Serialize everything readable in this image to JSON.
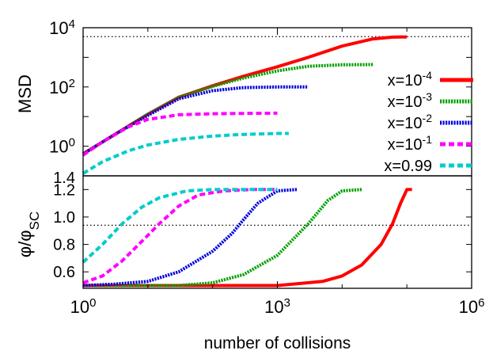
{
  "chart_data": [
    {
      "type": "line",
      "panel": "top",
      "ylabel": "MSD",
      "x_scale": "log",
      "y_scale": "log",
      "xlim": [
        1,
        1000000
      ],
      "ylim": [
        0.1,
        10000
      ],
      "y_ticks": [
        {
          "value": 1,
          "base": "10",
          "exp": "0"
        },
        {
          "value": 100,
          "base": "10",
          "exp": "2"
        },
        {
          "value": 10000,
          "base": "10",
          "exp": "4"
        }
      ],
      "reference_line": {
        "y": 5000,
        "style": "dotted"
      },
      "legend_position": "right",
      "series": [
        {
          "label_base": "x=10",
          "label_exp": "-4",
          "color": "#ff0000",
          "dash": "solid",
          "points": [
            [
              1,
              0.55
            ],
            [
              3,
              2.4
            ],
            [
              10,
              12
            ],
            [
              30,
              45
            ],
            [
              100,
              110
            ],
            [
              300,
              230
            ],
            [
              1000,
              480
            ],
            [
              3000,
              1000
            ],
            [
              10000,
              2400
            ],
            [
              30000,
              4200
            ],
            [
              60000,
              4800
            ],
            [
              100000,
              4900
            ]
          ]
        },
        {
          "label_base": "x=10",
          "label_exp": "-3",
          "color": "#00a000",
          "dash": "dotted",
          "points": [
            [
              1,
              0.55
            ],
            [
              3,
              2.4
            ],
            [
              10,
              12
            ],
            [
              30,
              45
            ],
            [
              100,
              105
            ],
            [
              300,
              200
            ],
            [
              1000,
              350
            ],
            [
              3000,
              500
            ],
            [
              10000,
              560
            ],
            [
              30000,
              570
            ]
          ]
        },
        {
          "label_base": "x=10",
          "label_exp": "-2",
          "color": "#0000dd",
          "dash": "dotted",
          "points": [
            [
              1,
              0.55
            ],
            [
              3,
              2.4
            ],
            [
              10,
              11
            ],
            [
              30,
              40
            ],
            [
              100,
              75
            ],
            [
              300,
              95
            ],
            [
              1000,
              100
            ],
            [
              3000,
              100
            ]
          ]
        },
        {
          "label_base": "x=10",
          "label_exp": "-1",
          "color": "#ff00ff",
          "dash": "dashed",
          "points": [
            [
              1,
              0.5
            ],
            [
              2,
              1.4
            ],
            [
              5,
              4.5
            ],
            [
              10,
              8
            ],
            [
              30,
              11.5
            ],
            [
              100,
              12.5
            ],
            [
              300,
              12.8
            ],
            [
              1000,
              13
            ]
          ]
        },
        {
          "label": "x=0.99",
          "color": "#00cccc",
          "dash": "dashed",
          "points": [
            [
              1,
              0.12
            ],
            [
              2,
              0.3
            ],
            [
              5,
              0.7
            ],
            [
              10,
              1.1
            ],
            [
              30,
              1.7
            ],
            [
              100,
              2.2
            ],
            [
              300,
              2.5
            ],
            [
              1000,
              2.7
            ],
            [
              1500,
              2.7
            ]
          ]
        }
      ]
    },
    {
      "type": "line",
      "panel": "bottom",
      "xlabel": "number of collisions",
      "ylabel_base": "φ/φ",
      "ylabel_sub": "SC",
      "x_scale": "log",
      "xlim": [
        1,
        1000000
      ],
      "ylim": [
        0.48,
        1.3
      ],
      "y_ticks": [
        "0.6",
        "0.8",
        "1.0",
        "1.2",
        "1.4"
      ],
      "x_ticks": [
        {
          "value": 1,
          "base": "10",
          "exp": "0"
        },
        {
          "value": 1000,
          "base": "10",
          "exp": "3"
        },
        {
          "value": 1000000,
          "base": "10",
          "exp": "6"
        }
      ],
      "reference_line": {
        "y": 0.94,
        "style": "dotted"
      },
      "series": [
        {
          "name": "x=10^-4",
          "color": "#ff0000",
          "dash": "solid",
          "points": [
            [
              1,
              0.5
            ],
            [
              100,
              0.5
            ],
            [
              1000,
              0.5
            ],
            [
              5000,
              0.53
            ],
            [
              10000,
              0.57
            ],
            [
              20000,
              0.65
            ],
            [
              40000,
              0.8
            ],
            [
              60000,
              0.95
            ],
            [
              80000,
              1.1
            ],
            [
              100000,
              1.2
            ],
            [
              120000,
              1.2
            ]
          ]
        },
        {
          "name": "x=10^-3",
          "color": "#00a000",
          "dash": "dotted",
          "points": [
            [
              1,
              0.5
            ],
            [
              30,
              0.5
            ],
            [
              100,
              0.52
            ],
            [
              300,
              0.58
            ],
            [
              1000,
              0.72
            ],
            [
              3000,
              0.95
            ],
            [
              6000,
              1.12
            ],
            [
              10000,
              1.19
            ],
            [
              20000,
              1.2
            ]
          ]
        },
        {
          "name": "x=10^-2",
          "color": "#0000dd",
          "dash": "dotted",
          "points": [
            [
              1,
              0.5
            ],
            [
              3,
              0.51
            ],
            [
              10,
              0.53
            ],
            [
              30,
              0.6
            ],
            [
              100,
              0.75
            ],
            [
              200,
              0.88
            ],
            [
              300,
              0.98
            ],
            [
              500,
              1.1
            ],
            [
              1000,
              1.19
            ],
            [
              2000,
              1.2
            ]
          ]
        },
        {
          "name": "x=10^-1",
          "color": "#ff00ff",
          "dash": "dashed",
          "points": [
            [
              1,
              0.52
            ],
            [
              2,
              0.57
            ],
            [
              4,
              0.68
            ],
            [
              8,
              0.82
            ],
            [
              15,
              0.95
            ],
            [
              30,
              1.08
            ],
            [
              60,
              1.16
            ],
            [
              150,
              1.19
            ],
            [
              400,
              1.2
            ],
            [
              900,
              1.2
            ]
          ]
        },
        {
          "name": "x=0.99",
          "color": "#00cccc",
          "dash": "dashed",
          "points": [
            [
              1,
              0.67
            ],
            [
              2,
              0.8
            ],
            [
              4,
              0.95
            ],
            [
              8,
              1.07
            ],
            [
              15,
              1.14
            ],
            [
              40,
              1.19
            ],
            [
              100,
              1.2
            ],
            [
              500,
              1.2
            ],
            [
              1000,
              1.2
            ]
          ]
        }
      ]
    }
  ]
}
